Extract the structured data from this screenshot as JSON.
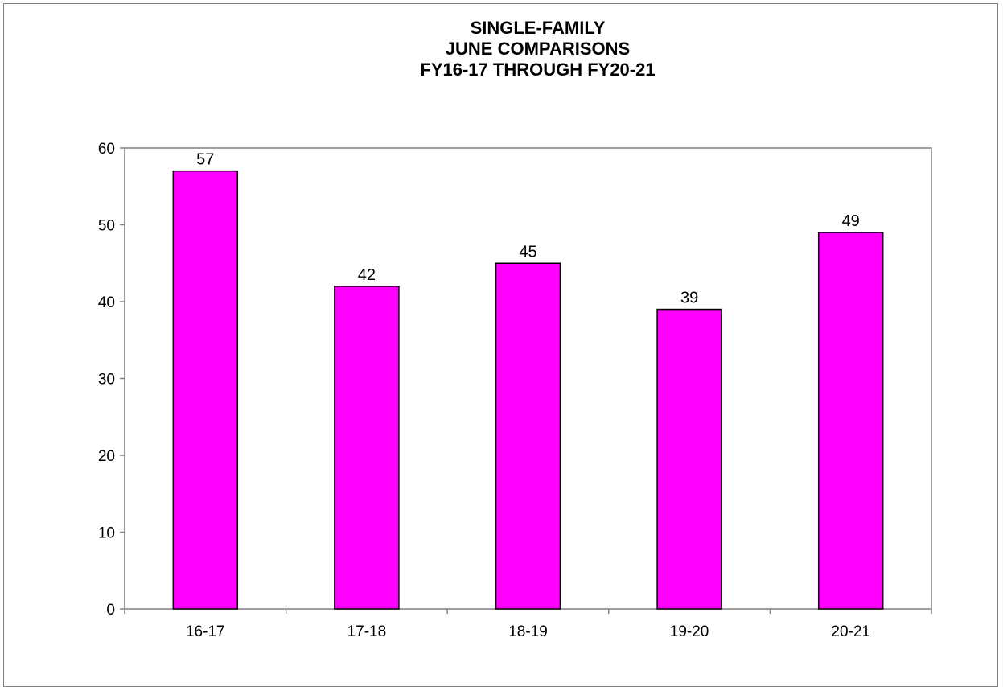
{
  "chart_data": {
    "type": "bar",
    "title_lines": [
      "SINGLE-FAMILY",
      "JUNE COMPARISONS",
      "FY16-17 THROUGH  FY20-21"
    ],
    "categories": [
      "16-17",
      "17-18",
      "18-19",
      "19-20",
      "20-21"
    ],
    "values": [
      57,
      42,
      45,
      39,
      49
    ],
    "data_labels": [
      "57",
      "42",
      "45",
      "39",
      "49"
    ],
    "xlabel": "",
    "ylabel": "",
    "ylim": [
      0,
      60
    ],
    "yticks": [
      0,
      10,
      20,
      30,
      40,
      50,
      60
    ],
    "grid": false,
    "legend": "none",
    "colors": {
      "bar_fill": "#ff00ff",
      "bar_stroke": "#000000",
      "axis": "#808080"
    }
  }
}
